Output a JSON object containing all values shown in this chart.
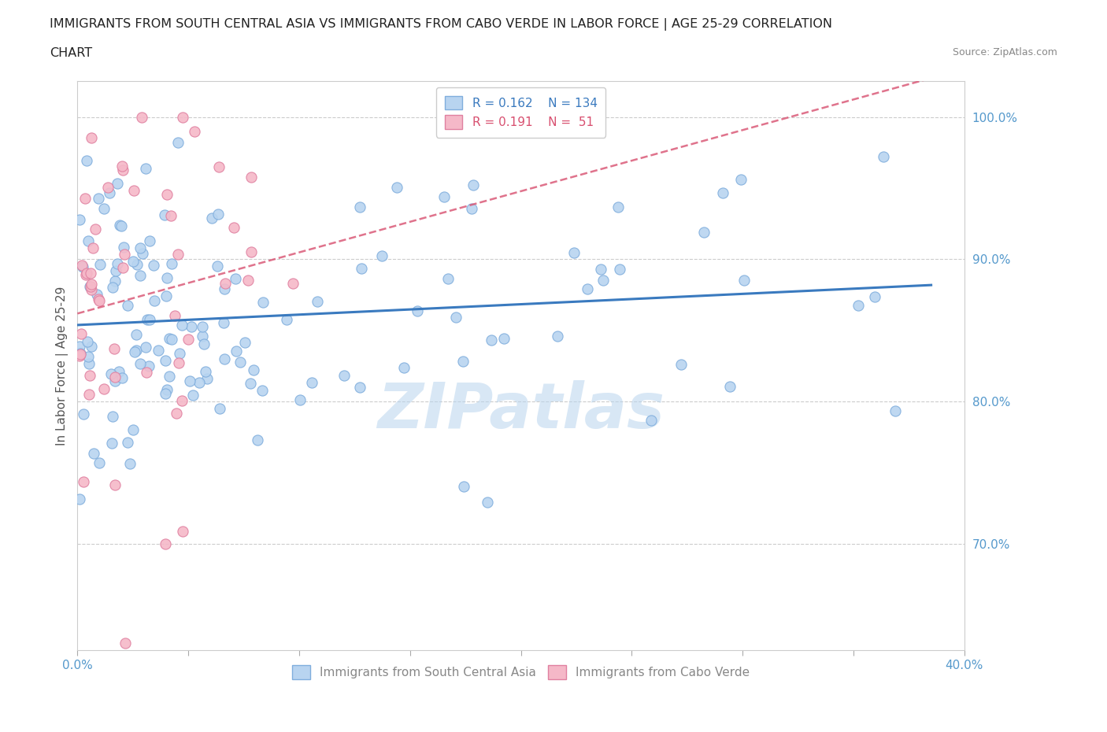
{
  "title_line1": "IMMIGRANTS FROM SOUTH CENTRAL ASIA VS IMMIGRANTS FROM CABO VERDE IN LABOR FORCE | AGE 25-29 CORRELATION",
  "title_line2": "CHART",
  "source_text": "Source: ZipAtlas.com",
  "ylabel": "In Labor Force | Age 25-29",
  "xlim": [
    0.0,
    0.4
  ],
  "ylim": [
    0.625,
    1.025
  ],
  "xticks": [
    0.0,
    0.05,
    0.1,
    0.15,
    0.2,
    0.25,
    0.3,
    0.35,
    0.4
  ],
  "yticks": [
    0.7,
    0.8,
    0.9,
    1.0
  ],
  "ytick_labels": [
    "70.0%",
    "80.0%",
    "90.0%",
    "100.0%"
  ],
  "series_blue": {
    "name": "Immigrants from South Central Asia",
    "R": 0.162,
    "N": 134,
    "color": "#b8d4f0",
    "edge_color": "#80aedd",
    "trend_color": "#3a7abf",
    "trend_style": "-"
  },
  "series_pink": {
    "name": "Immigrants from Cabo Verde",
    "R": 0.191,
    "N": 51,
    "color": "#f5b8c8",
    "edge_color": "#e080a0",
    "trend_color": "#d85070",
    "trend_style": "--"
  },
  "legend_R_blue": "0.162",
  "legend_N_blue": "134",
  "legend_R_pink": "0.191",
  "legend_N_pink": " 51",
  "watermark": "ZIPatlas",
  "background_color": "#ffffff",
  "grid_color": "#cccccc",
  "axis_color": "#cccccc",
  "title_fontsize": 11.5,
  "axis_label_fontsize": 11,
  "tick_fontsize": 11,
  "tick_color": "#5599cc"
}
